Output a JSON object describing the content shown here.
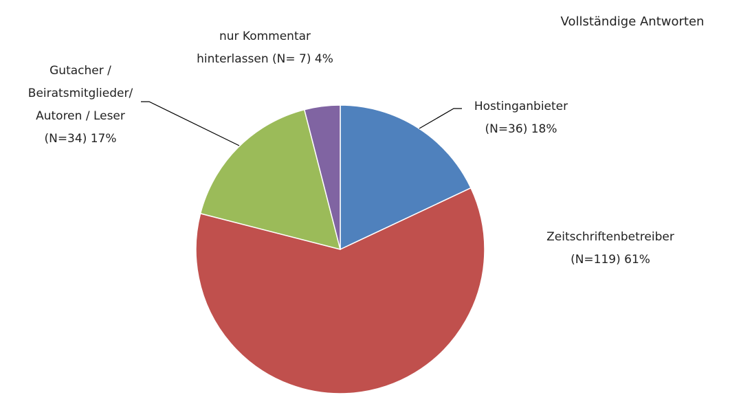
{
  "chart_data": {
    "type": "pie",
    "title": "Vollständige Antworten",
    "categories": [
      "Hostinganbieter",
      "Zeitschriftenbetreiber",
      "Gutacher / Beiratsmitglieder/ Autoren / Leser",
      "nur Kommentar hinterlassen"
    ],
    "values": [
      18,
      61,
      17,
      4
    ],
    "value_labels": [
      "(N=36) 18%",
      "(N=119) 61%",
      "(N=34) 17%",
      "(N= 7) 4%"
    ],
    "colors": [
      "#4f81bd",
      "#c0504d",
      "#9bbb59",
      "#8064a2"
    ]
  }
}
